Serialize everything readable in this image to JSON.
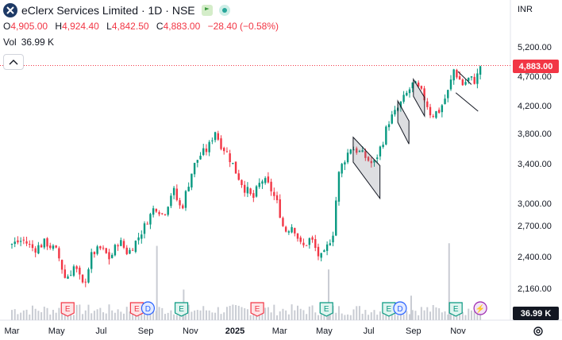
{
  "header": {
    "title": "eClerx Services Limited · 1D · NSE",
    "ohlc": [
      {
        "label": "O",
        "value": "4,905.00"
      },
      {
        "label": "H",
        "value": "4,924.40"
      },
      {
        "label": "L",
        "value": "4,842.50"
      },
      {
        "label": "C",
        "value": "4,883.00"
      },
      {
        "label": "",
        "value": "−28.40 (−0.58%)"
      }
    ],
    "volume_label": "Vol",
    "volume_value": "36.99 K"
  },
  "currency": "INR",
  "last_price_tag": "4,883.00",
  "volume_tag": "36.99 K",
  "colors": {
    "up": "#089981",
    "down": "#f23645",
    "grid": "#f0f3fa",
    "volume": "#c9ccd3"
  },
  "chart_data": {
    "type": "candlestick",
    "y_ticks": [
      2160,
      2400,
      2700,
      3000,
      3400,
      3800,
      4200,
      4700,
      5200
    ],
    "y_tick_labels": [
      "2,160.00",
      "2,400.00",
      "2,700.00",
      "3,000.00",
      "3,400.00",
      "3,800.00",
      "4,200.00",
      "4,700.00",
      "5,200.00"
    ],
    "x_tick_labels": [
      "Mar",
      "May",
      "Jul",
      "Sep",
      "Nov",
      "2025",
      "Mar",
      "May",
      "Jul",
      "Sep",
      "Nov"
    ],
    "x_tick_months": [
      0,
      2,
      4,
      6,
      8,
      10,
      12,
      14,
      16,
      18,
      20
    ],
    "last_close": 4883,
    "close_path": [
      [
        0.0,
        2520
      ],
      [
        0.5,
        2560
      ],
      [
        1.0,
        2470
      ],
      [
        1.5,
        2540
      ],
      [
        2.0,
        2450
      ],
      [
        2.4,
        2230
      ],
      [
        2.8,
        2330
      ],
      [
        3.2,
        2170
      ],
      [
        3.6,
        2430
      ],
      [
        4.0,
        2480
      ],
      [
        4.4,
        2380
      ],
      [
        4.8,
        2560
      ],
      [
        5.2,
        2430
      ],
      [
        5.6,
        2560
      ],
      [
        6.0,
        2720
      ],
      [
        6.4,
        2960
      ],
      [
        6.8,
        2840
      ],
      [
        7.2,
        3150
      ],
      [
        7.6,
        2920
      ],
      [
        8.0,
        3280
      ],
      [
        8.4,
        3500
      ],
      [
        8.8,
        3600
      ],
      [
        9.1,
        3850
      ],
      [
        9.3,
        3690
      ],
      [
        9.6,
        3560
      ],
      [
        10.0,
        3340
      ],
      [
        10.4,
        3170
      ],
      [
        10.8,
        3040
      ],
      [
        11.2,
        3240
      ],
      [
        11.6,
        3150
      ],
      [
        11.9,
        2990
      ],
      [
        12.2,
        2640
      ],
      [
        12.6,
        2710
      ],
      [
        13.0,
        2480
      ],
      [
        13.4,
        2580
      ],
      [
        13.8,
        2380
      ],
      [
        14.0,
        2420
      ],
      [
        14.4,
        2640
      ],
      [
        14.6,
        3250
      ],
      [
        14.9,
        3450
      ],
      [
        15.2,
        3620
      ],
      [
        15.5,
        3570
      ],
      [
        15.8,
        3500
      ],
      [
        16.2,
        3380
      ],
      [
        16.6,
        3670
      ],
      [
        16.9,
        3980
      ],
      [
        17.2,
        4100
      ],
      [
        17.4,
        4220
      ],
      [
        17.7,
        4400
      ],
      [
        18.0,
        4580
      ],
      [
        18.4,
        4400
      ],
      [
        18.8,
        4060
      ],
      [
        19.2,
        4140
      ],
      [
        19.6,
        4480
      ],
      [
        19.8,
        4820
      ],
      [
        20.2,
        4560
      ],
      [
        20.5,
        4660
      ],
      [
        20.8,
        4620
      ],
      [
        21.0,
        4883
      ]
    ],
    "volume_spikes": [
      {
        "month": 6.5,
        "rel": 0.85
      },
      {
        "month": 7.7,
        "rel": 0.35
      },
      {
        "month": 14.2,
        "rel": 0.58
      },
      {
        "month": 17.9,
        "rel": 0.28
      },
      {
        "month": 19.6,
        "rel": 0.88
      }
    ],
    "events": [
      {
        "month": 2.5,
        "label": "E",
        "kind": "earnings-down"
      },
      {
        "month": 5.6,
        "label": "E",
        "kind": "earnings-down"
      },
      {
        "month": 6.1,
        "label": "D",
        "kind": "dividend"
      },
      {
        "month": 7.6,
        "label": "E",
        "kind": "earnings-up"
      },
      {
        "month": 11.0,
        "label": "E",
        "kind": "earnings-down"
      },
      {
        "month": 14.1,
        "label": "E",
        "kind": "earnings-up"
      },
      {
        "month": 16.9,
        "label": "E",
        "kind": "earnings-up"
      },
      {
        "month": 17.4,
        "label": "D",
        "kind": "dividend"
      },
      {
        "month": 19.9,
        "label": "E",
        "kind": "earnings-up"
      },
      {
        "month": 21.0,
        "label": "⚡",
        "kind": "split"
      }
    ],
    "drawings": [
      {
        "type": "channel",
        "points": [
          [
            15.3,
            3750
          ],
          [
            16.5,
            3380
          ]
        ],
        "width": 330
      },
      {
        "type": "channel",
        "points": [
          [
            17.3,
            4280
          ],
          [
            17.8,
            3980
          ]
        ],
        "width": 320
      },
      {
        "type": "channel",
        "points": [
          [
            18.0,
            4650
          ],
          [
            18.5,
            4340
          ]
        ],
        "width": 290
      },
      {
        "type": "trendline",
        "points": [
          [
            20.0,
            4780
          ],
          [
            20.6,
            4560
          ]
        ]
      },
      {
        "type": "trendline",
        "points": [
          [
            19.9,
            4420
          ],
          [
            20.9,
            4120
          ]
        ]
      }
    ]
  }
}
